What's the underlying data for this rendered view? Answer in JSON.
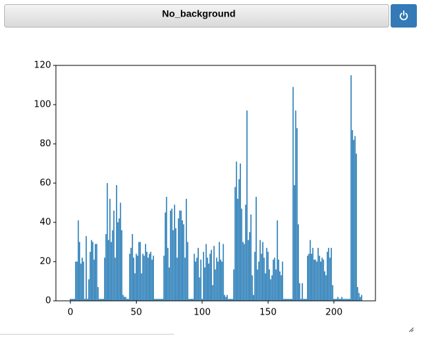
{
  "header": {
    "title": "No_background"
  },
  "chart_data": {
    "type": "bar",
    "color": "#1f77b4",
    "x": [
      0,
      1,
      2,
      3,
      4,
      5,
      6,
      7,
      8,
      9,
      10,
      11,
      12,
      13,
      14,
      15,
      16,
      17,
      18,
      19,
      20,
      21,
      22,
      23,
      24,
      25,
      26,
      27,
      28,
      29,
      30,
      31,
      32,
      33,
      34,
      35,
      36,
      37,
      38,
      39,
      40,
      41,
      42,
      43,
      44,
      45,
      46,
      47,
      48,
      49,
      50,
      51,
      52,
      53,
      54,
      55,
      56,
      57,
      58,
      59,
      60,
      61,
      62,
      63,
      64,
      65,
      66,
      67,
      68,
      69,
      70,
      71,
      72,
      73,
      74,
      75,
      76,
      77,
      78,
      79,
      80,
      81,
      82,
      83,
      84,
      85,
      86,
      87,
      88,
      89,
      90,
      91,
      92,
      93,
      94,
      95,
      96,
      97,
      98,
      99,
      100,
      101,
      102,
      103,
      104,
      105,
      106,
      107,
      108,
      109,
      110,
      111,
      112,
      113,
      114,
      115,
      116,
      117,
      118,
      119,
      120,
      121,
      122,
      123,
      124,
      125,
      126,
      127,
      128,
      129,
      130,
      131,
      132,
      133,
      134,
      135,
      136,
      137,
      138,
      139,
      140,
      141,
      142,
      143,
      144,
      145,
      146,
      147,
      148,
      149,
      150,
      151,
      152,
      153,
      154,
      155,
      156,
      157,
      158,
      159,
      160,
      161,
      162,
      163,
      164,
      165,
      166,
      167,
      168,
      169,
      170,
      171,
      172,
      173,
      174,
      175,
      176,
      177,
      178,
      179,
      180,
      181,
      182,
      183,
      184,
      185,
      186,
      187,
      188,
      189,
      190,
      191,
      192,
      193,
      194,
      195,
      196,
      197,
      198,
      199,
      200,
      201,
      202,
      203,
      204,
      205,
      206,
      207,
      208,
      209,
      210,
      211,
      212,
      213,
      214,
      215,
      216,
      217,
      218,
      219,
      220,
      221
    ],
    "values": [
      1,
      1,
      1,
      1,
      20,
      20,
      41,
      30,
      19,
      22,
      20,
      1,
      33,
      1,
      11,
      25,
      31,
      30,
      21,
      29,
      29,
      7,
      1,
      1,
      1,
      1,
      22,
      34,
      60,
      31,
      52,
      30,
      36,
      46,
      22,
      59,
      40,
      42,
      50,
      36,
      3,
      2,
      2,
      1,
      1,
      24,
      27,
      34,
      22,
      14,
      24,
      23,
      30,
      30,
      14,
      24,
      23,
      29,
      25,
      22,
      24,
      25,
      21,
      23,
      1,
      1,
      1,
      1,
      1,
      1,
      1,
      23,
      45,
      53,
      27,
      17,
      46,
      47,
      36,
      49,
      37,
      22,
      42,
      46,
      46,
      41,
      39,
      22,
      52,
      30,
      1,
      1,
      1,
      1,
      24,
      20,
      22,
      27,
      12,
      21,
      1,
      25,
      17,
      29,
      22,
      19,
      24,
      26,
      8,
      28,
      16,
      22,
      20,
      30,
      21,
      20,
      29,
      3,
      2,
      3,
      1,
      1,
      1,
      1,
      16,
      58,
      71,
      52,
      62,
      70,
      47,
      30,
      29,
      49,
      97,
      31,
      35,
      44,
      13,
      3,
      25,
      53,
      16,
      20,
      31,
      24,
      30,
      22,
      14,
      27,
      25,
      16,
      11,
      13,
      21,
      22,
      16,
      41,
      21,
      15,
      13,
      20,
      1,
      1,
      1,
      1,
      1,
      1,
      1,
      109,
      59,
      97,
      88,
      39,
      9,
      1,
      9,
      1,
      1,
      1,
      23,
      24,
      31,
      24,
      27,
      21,
      21,
      20,
      27,
      23,
      20,
      22,
      21,
      15,
      13,
      25,
      27,
      22,
      27,
      8,
      1,
      1,
      1,
      2,
      1,
      1,
      2,
      1,
      1,
      1,
      1,
      1,
      1,
      115,
      87,
      82,
      84,
      75,
      7,
      4,
      2,
      3
    ],
    "xlim": [
      -11,
      231.5
    ],
    "xticks": [
      0,
      50,
      100,
      150,
      200
    ],
    "ylim": [
      0,
      120
    ],
    "yticks": [
      0,
      20,
      40,
      60,
      80,
      100,
      120
    ]
  }
}
